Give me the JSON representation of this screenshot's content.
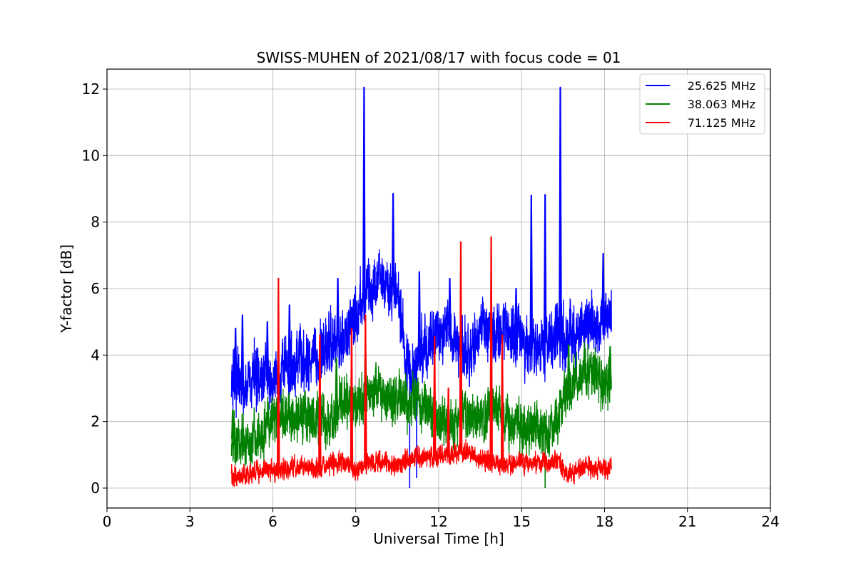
{
  "chart_data": {
    "type": "line",
    "title": "SWISS-MUHEN of 2021/08/17 with focus code = 01",
    "xlabel": "Universal Time [h]",
    "ylabel": "Y-factor [dB]",
    "xlim": [
      0,
      24
    ],
    "ylim": [
      -0.6,
      12.6
    ],
    "xticks": [
      0,
      3,
      6,
      9,
      12,
      15,
      18,
      21,
      24
    ],
    "yticks": [
      0,
      2,
      4,
      6,
      8,
      10,
      12
    ],
    "grid": true,
    "legend_position": "top-right",
    "x_range": [
      4.5,
      18.25
    ],
    "series": [
      {
        "name": "25.625 MHz",
        "color": "#0000ff",
        "baseline": [
          [
            4.5,
            3.2
          ],
          [
            5.0,
            3.1
          ],
          [
            5.5,
            3.4
          ],
          [
            6.0,
            3.3
          ],
          [
            6.5,
            3.6
          ],
          [
            7.0,
            3.7
          ],
          [
            7.5,
            3.8
          ],
          [
            8.0,
            4.2
          ],
          [
            8.5,
            4.5
          ],
          [
            9.0,
            5.2
          ],
          [
            9.5,
            6.0
          ],
          [
            10.0,
            6.2
          ],
          [
            10.5,
            6.0
          ],
          [
            10.8,
            4.0
          ],
          [
            11.0,
            3.5
          ],
          [
            11.5,
            4.2
          ],
          [
            12.0,
            4.8
          ],
          [
            12.5,
            4.5
          ],
          [
            13.0,
            4.0
          ],
          [
            13.5,
            4.8
          ],
          [
            14.0,
            4.5
          ],
          [
            14.5,
            4.8
          ],
          [
            15.0,
            4.4
          ],
          [
            15.5,
            4.1
          ],
          [
            16.0,
            4.5
          ],
          [
            16.5,
            4.7
          ],
          [
            17.0,
            4.6
          ],
          [
            17.5,
            4.9
          ],
          [
            18.0,
            5.0
          ],
          [
            18.25,
            5.2
          ]
        ],
        "spread": 0.9,
        "spikes": [
          [
            4.65,
            4.8
          ],
          [
            4.9,
            5.2
          ],
          [
            5.8,
            5.0
          ],
          [
            6.6,
            5.5
          ],
          [
            8.35,
            6.3
          ],
          [
            9.3,
            12.05
          ],
          [
            10.35,
            8.85
          ],
          [
            11.3,
            6.5
          ],
          [
            12.4,
            6.3
          ],
          [
            14.8,
            6.0
          ],
          [
            15.35,
            8.8
          ],
          [
            15.85,
            8.82
          ],
          [
            16.4,
            12.05
          ],
          [
            17.95,
            7.05
          ]
        ],
        "dips": [
          [
            10.95,
            0.0
          ],
          [
            11.2,
            0.3
          ]
        ]
      },
      {
        "name": "38.063 MHz",
        "color": "#008000",
        "baseline": [
          [
            4.5,
            1.5
          ],
          [
            5.0,
            1.4
          ],
          [
            5.5,
            1.6
          ],
          [
            6.0,
            2.0
          ],
          [
            6.5,
            2.2
          ],
          [
            7.0,
            2.0
          ],
          [
            7.5,
            2.2
          ],
          [
            8.0,
            1.9
          ],
          [
            8.5,
            2.6
          ],
          [
            9.0,
            2.3
          ],
          [
            9.5,
            3.1
          ],
          [
            10.0,
            2.9
          ],
          [
            10.5,
            2.6
          ],
          [
            11.0,
            2.5
          ],
          [
            11.5,
            2.4
          ],
          [
            12.0,
            2.1
          ],
          [
            12.5,
            2.0
          ],
          [
            13.0,
            2.2
          ],
          [
            13.5,
            2.0
          ],
          [
            14.0,
            2.3
          ],
          [
            14.5,
            2.0
          ],
          [
            15.0,
            1.8
          ],
          [
            15.5,
            2.0
          ],
          [
            16.0,
            1.6
          ],
          [
            16.5,
            2.6
          ],
          [
            17.0,
            3.2
          ],
          [
            17.5,
            3.6
          ],
          [
            18.0,
            3.0
          ],
          [
            18.25,
            3.2
          ]
        ],
        "spread": 0.75,
        "spikes": [
          [
            4.55,
            2.35
          ],
          [
            8.3,
            3.9
          ],
          [
            9.35,
            4.3
          ],
          [
            16.7,
            4.3
          ],
          [
            18.2,
            4.25
          ]
        ],
        "dips": [
          [
            15.85,
            0.0
          ]
        ]
      },
      {
        "name": "71.125 MHz",
        "color": "#ff0000",
        "baseline": [
          [
            4.5,
            0.35
          ],
          [
            5.0,
            0.4
          ],
          [
            5.5,
            0.45
          ],
          [
            6.0,
            0.5
          ],
          [
            6.5,
            0.6
          ],
          [
            7.0,
            0.65
          ],
          [
            7.5,
            0.6
          ],
          [
            8.0,
            0.7
          ],
          [
            8.5,
            0.8
          ],
          [
            9.0,
            0.55
          ],
          [
            9.5,
            0.75
          ],
          [
            10.0,
            0.8
          ],
          [
            10.5,
            0.7
          ],
          [
            11.0,
            0.85
          ],
          [
            11.5,
            0.9
          ],
          [
            12.0,
            0.95
          ],
          [
            12.5,
            1.05
          ],
          [
            13.0,
            1.1
          ],
          [
            13.5,
            0.9
          ],
          [
            14.0,
            0.75
          ],
          [
            14.5,
            0.7
          ],
          [
            15.0,
            0.75
          ],
          [
            15.5,
            0.75
          ],
          [
            16.0,
            0.75
          ],
          [
            16.3,
            0.85
          ],
          [
            16.6,
            0.35
          ],
          [
            17.0,
            0.5
          ],
          [
            17.5,
            0.7
          ],
          [
            18.0,
            0.6
          ],
          [
            18.25,
            0.55
          ]
        ],
        "spread": 0.3,
        "spikes": [
          [
            6.2,
            6.3
          ],
          [
            7.7,
            4.6
          ],
          [
            8.85,
            4.8
          ],
          [
            9.35,
            5.2
          ],
          [
            11.85,
            4.55
          ],
          [
            12.35,
            3.0
          ],
          [
            12.8,
            7.4
          ],
          [
            13.9,
            7.55
          ],
          [
            14.3,
            4.6
          ]
        ],
        "dips": []
      }
    ]
  }
}
